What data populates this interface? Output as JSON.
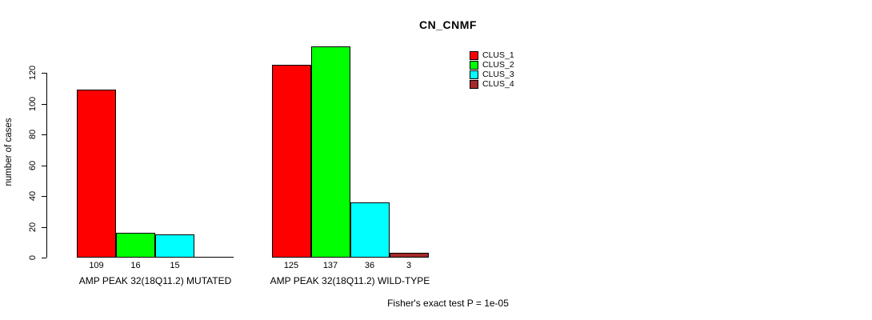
{
  "title": "CN_CNMF",
  "footer": "Fisher's exact test P = 1e-05",
  "chart_data": {
    "type": "bar",
    "title": "CN_CNMF",
    "ylabel": "number of cases",
    "yticks": [
      0,
      20,
      40,
      60,
      80,
      100,
      120
    ],
    "ylim": [
      0,
      140
    ],
    "grid": false,
    "legend_position": "top-right",
    "series": [
      "CLUS_1",
      "CLUS_2",
      "CLUS_3",
      "CLUS_4"
    ],
    "series_colors": [
      "#FF0000",
      "#00FF00",
      "#00FFFF",
      "#A52A2A"
    ],
    "groups": [
      {
        "label": "AMP PEAK 32(18Q11.2) MUTATED",
        "values": [
          109,
          16,
          15,
          0
        ],
        "value_labels": [
          "109",
          "16",
          "15",
          ""
        ]
      },
      {
        "label": "AMP PEAK 32(18Q11.2) WILD-TYPE",
        "values": [
          125,
          137,
          36,
          3
        ],
        "value_labels": [
          "125",
          "137",
          "36",
          "3"
        ]
      }
    ],
    "annotation": "Fisher's exact test P = 1e-05"
  }
}
